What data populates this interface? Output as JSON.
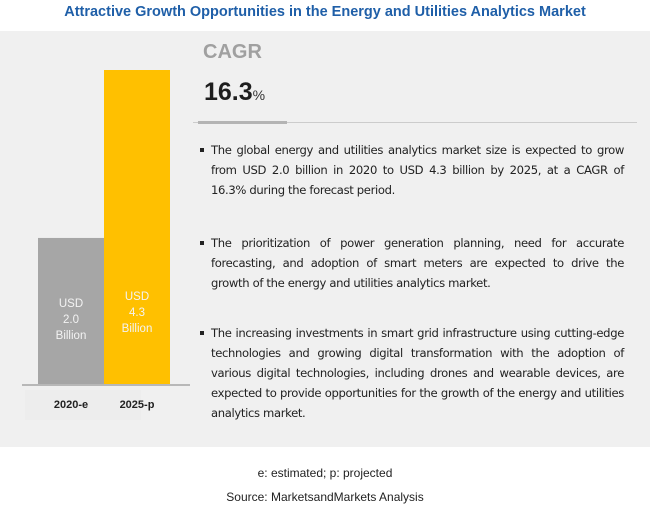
{
  "title": "Attractive Growth Opportunities in the Energy and Utilities Analytics Market",
  "cagr": {
    "label": "CAGR",
    "value": "16.3",
    "unit": "%"
  },
  "bullets": [
    "The global energy and utilities analytics market size is expected to grow from USD 2.0 billion in 2020 to USD 4.3 billion by 2025, at a CAGR of 16.3% during the forecast period.",
    "The prioritization of power generation planning, need for accurate forecasting, and adoption of smart meters are expected to drive the growth of the energy and utilities analytics market.",
    "The increasing investments in smart grid infrastructure using cutting-edge technologies and growing digital transformation with the adoption of various digital technologies, including drones and wearable devices, are expected to provide opportunities for the growth of the energy and utilities analytics market."
  ],
  "footnote": "e: estimated; p: projected",
  "source": "Source: MarketsandMarkets Analysis",
  "chart_data": {
    "type": "bar",
    "title": "",
    "xlabel": "",
    "ylabel": "",
    "categories": [
      "2020-e",
      "2025-p"
    ],
    "values": [
      2.0,
      4.3
    ],
    "units": "USD Billion",
    "data_labels": [
      [
        "USD",
        "2.0",
        "Billion"
      ],
      [
        "USD",
        "4.3",
        "Billion"
      ]
    ],
    "colors": [
      "#a6a6a6",
      "#ffc000"
    ],
    "ylim": [
      0,
      4.3
    ],
    "grid": false,
    "legend": "none"
  }
}
